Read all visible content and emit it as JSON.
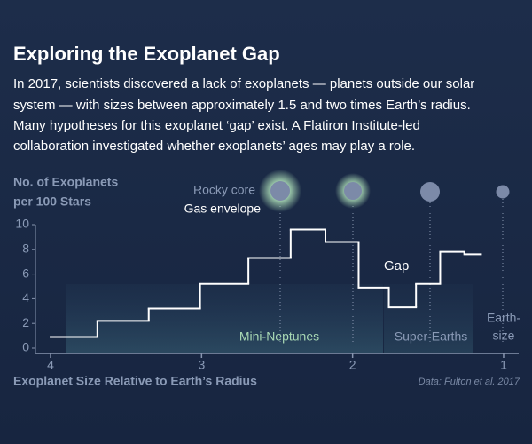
{
  "chart_data": {
    "type": "histogram",
    "title": "Exploring the Exoplanet Gap",
    "subtitle": [
      "In 2017, scientists discovered a lack of exoplanets — planets outside our solar",
      "system — with sizes between approximately 1.5 and two times Earth’s radius.",
      "Many hypotheses for this exoplanet ‘gap’ exist. A Flatiron Institute-led",
      "collaboration investigated whether exoplanets’ ages may play a role."
    ],
    "y_label": [
      "No. of Exoplanets",
      "per 100 Stars"
    ],
    "x_label": "Exoplanet Size Relative to Earth’s Radius",
    "source": "Data: Fulton et al. 2017",
    "annotations": {
      "rocky": "Rocky core",
      "gas": "Gas envelope",
      "gap": "Gap",
      "mini": "Mini-Neptunes",
      "super": "Super-Earths",
      "earth": [
        "Earth-",
        "size"
      ]
    },
    "bins": [
      4.0,
      3.69,
      3.35,
      3.01,
      2.69,
      2.41,
      2.18,
      1.96,
      1.76,
      1.58,
      1.42,
      1.26,
      1.15
    ],
    "values": [
      0.9,
      2.2,
      3.2,
      5.2,
      7.3,
      9.6,
      8.6,
      4.9,
      3.3,
      5.2,
      7.8,
      7.6
    ],
    "color": "#ffffff",
    "xlim": [
      4.1,
      0.9
    ],
    "xticks": [
      4,
      3,
      2,
      1
    ],
    "ylim": [
      0,
      10
    ],
    "yticks": [
      0,
      2,
      4,
      6,
      8,
      10
    ]
  }
}
